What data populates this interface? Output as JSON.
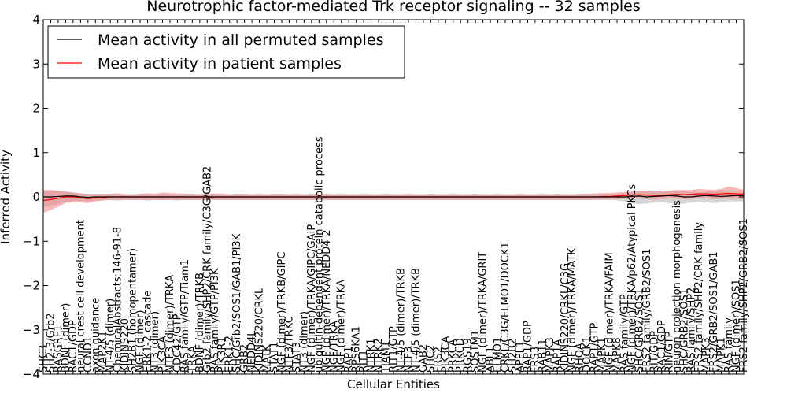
{
  "chart_data": {
    "type": "line",
    "title": "Neurotrophic factor-mediated Trk receptor signaling -- 32 samples",
    "xlabel": "Cellular Entities",
    "ylabel": "Inferred Activity",
    "ylim": [
      -4,
      4
    ],
    "yticks": [
      -4,
      -3,
      -2,
      -1,
      0,
      1,
      2,
      3,
      4
    ],
    "ytick_labels": [
      "−4",
      "−3",
      "−2",
      "−1",
      "0",
      "1",
      "2",
      "3",
      "4"
    ],
    "grid": false,
    "legend_position": "top-left",
    "categories": [
      "SHC3",
      "SH2-3/Grb2",
      "RASGRF1",
      "BDNF (dimer)",
      "RAC1/GDP",
      "neural crest cell development",
      "CCND1",
      "axon guidance",
      "MAP2K1",
      "NT-4/5 (dimer)",
      "ChemicalAbstracts:146-91-8",
      "KIDINS220",
      "SH2B1 (homopentamer)",
      "NGF (dimer)",
      "ERK1-2 cascade",
      "NT3 (dimer)",
      "PIK3CA",
      "NTF3 (dimer)/TRKA",
      "CDC42/GTP",
      "RAS family/GTP/Tiam1",
      "TRKA",
      "BDNF (dimer)/TRKB",
      "Grb2 family/SHP2/CRK family/C3G/GAB2",
      "RAS family/GTP/PI3K",
      "PIK3R1",
      "ERK1-2",
      "SHC/Grb2/SOS1/GAB1/PI3K",
      "GRB2",
      "NEDD4L",
      "KIDINS220/CRKL",
      "MATK",
      "STAT1",
      "NGF (dimer)/TRKB/GIPC",
      "NTF3/TRKC",
      "STAT3",
      "NT3 (dimer)",
      "NGF (dimer)/TRKA/GIPC/GAIP",
      "ubiquitin-dependent protein catabolic process",
      "NGF (dimer)/TRKA/NEDD4-2",
      "NGF/TRKA",
      "NGF (dimer)/TRKA",
      "RAP1",
      "RPS6KA1",
      "RIT1",
      "NTRK1",
      "NTRK2",
      "TIAM1",
      "RIT1/GTP",
      "NT-4/5 (dimer)/TRKB",
      "NTF3",
      "NT-4/5 (dimer)/TRKB",
      "GAB2",
      "SHC2",
      "FRS2",
      "PIK3CA",
      "PRKCA",
      "PRKCD",
      "RGS19",
      "SQSTM1",
      "NGF (dimer)/TRKA/GRIT",
      "ABL1",
      "ELMO1",
      "CRKL/C3G/ELMO1/DOCK1",
      "SH2B2",
      "APPL1",
      "RAP1/GDP",
      "FRS3",
      "RAB11",
      "MAPK3",
      "RAP1A",
      "KIDINS220/CRKL/C3G",
      "NGF (dimer)/TRKA/MATK",
      "RHOA",
      "DOCK1",
      "RAP1/GTP",
      "MAPK1",
      "NGF (dimer)/TRKA/FAIM",
      "MAPK8",
      "RAS family/GTP",
      "NGF (dimer)/TRKA/p62/Atypical PKCs",
      "SHC/GRB2/SOS1",
      "FRS2 family/GRB2/SOS1",
      "RIT/GDP",
      "RAC1/GDP",
      "RIN/GTP",
      "neuron projection morphogenesis",
      "SHC/GRB2/SOS1",
      "RAS family/SHP2",
      "FRS2 family/SHP2/CRK family",
      "MAPK3",
      "FRS2/GRB2/SOS1/GAB1",
      "MAPK1",
      "RAS family",
      "NGF (dimer)/SOS1",
      "FRS2 family/SHP2/GRB2/SOS1"
    ],
    "series": [
      {
        "name": "Mean activity in all permuted samples",
        "color": "#000000",
        "band_color": "#c8c8c8",
        "values": [
          0.0,
          0.0,
          0.01,
          0.02,
          0.02,
          0.0,
          -0.01,
          0.0,
          0.0,
          0.0,
          0.0,
          0.0,
          0.0,
          0.0,
          0.0,
          0.0,
          0.0,
          0.0,
          0.0,
          0.0,
          0.0,
          0.0,
          0.0,
          0.0,
          0.0,
          0.0,
          0.0,
          0.0,
          0.0,
          0.0,
          0.0,
          0.0,
          0.0,
          0.0,
          0.0,
          0.0,
          0.0,
          0.0,
          0.0,
          0.0,
          0.0,
          0.0,
          0.0,
          0.0,
          0.0,
          0.0,
          0.0,
          0.0,
          0.0,
          0.0,
          0.0,
          0.0,
          0.0,
          0.0,
          0.0,
          0.0,
          0.0,
          0.0,
          0.0,
          0.0,
          0.0,
          0.0,
          0.0,
          0.0,
          0.0,
          0.0,
          0.0,
          0.0,
          0.0,
          0.0,
          0.0,
          0.0,
          0.0,
          0.0,
          0.0,
          0.0,
          0.0,
          0.0,
          0.0,
          0.01,
          0.02,
          0.0,
          0.01,
          0.02,
          0.03,
          0.02,
          0.0,
          0.0,
          0.02,
          0.03,
          0.02,
          0.01,
          0.02,
          0.03,
          0.03
        ],
        "lower": [
          -0.22,
          -0.2,
          -0.16,
          -0.12,
          -0.1,
          -0.09,
          -0.1,
          -0.08,
          -0.08,
          -0.07,
          -0.08,
          -0.07,
          -0.07,
          -0.07,
          -0.08,
          -0.07,
          -0.07,
          -0.07,
          -0.08,
          -0.07,
          -0.07,
          -0.07,
          -0.07,
          -0.07,
          -0.07,
          -0.07,
          -0.07,
          -0.07,
          -0.07,
          -0.07,
          -0.07,
          -0.07,
          -0.07,
          -0.07,
          -0.07,
          -0.07,
          -0.07,
          -0.07,
          -0.07,
          -0.07,
          -0.07,
          -0.07,
          -0.07,
          -0.07,
          -0.07,
          -0.07,
          -0.07,
          -0.07,
          -0.07,
          -0.07,
          -0.07,
          -0.07,
          -0.07,
          -0.07,
          -0.07,
          -0.07,
          -0.07,
          -0.07,
          -0.07,
          -0.07,
          -0.07,
          -0.07,
          -0.07,
          -0.07,
          -0.07,
          -0.07,
          -0.07,
          -0.07,
          -0.07,
          -0.07,
          -0.07,
          -0.07,
          -0.07,
          -0.07,
          -0.07,
          -0.07,
          -0.07,
          -0.08,
          -0.1,
          -0.14,
          -0.16,
          -0.15,
          -0.13,
          -0.12,
          -0.14,
          -0.16,
          -0.15,
          -0.12,
          -0.1,
          -0.12,
          -0.14,
          -0.12,
          -0.1,
          -0.1,
          -0.1
        ],
        "upper": [
          0.12,
          0.14,
          0.14,
          0.12,
          0.1,
          0.08,
          0.07,
          0.07,
          0.07,
          0.07,
          0.07,
          0.06,
          0.06,
          0.06,
          0.07,
          0.06,
          0.06,
          0.06,
          0.06,
          0.06,
          0.06,
          0.06,
          0.06,
          0.06,
          0.06,
          0.06,
          0.06,
          0.06,
          0.06,
          0.06,
          0.06,
          0.06,
          0.06,
          0.06,
          0.06,
          0.06,
          0.06,
          0.06,
          0.06,
          0.06,
          0.06,
          0.06,
          0.06,
          0.06,
          0.06,
          0.06,
          0.06,
          0.06,
          0.06,
          0.06,
          0.06,
          0.06,
          0.06,
          0.06,
          0.06,
          0.06,
          0.06,
          0.06,
          0.06,
          0.06,
          0.06,
          0.06,
          0.06,
          0.06,
          0.06,
          0.06,
          0.06,
          0.06,
          0.06,
          0.06,
          0.06,
          0.06,
          0.06,
          0.06,
          0.06,
          0.06,
          0.06,
          0.07,
          0.09,
          0.12,
          0.14,
          0.14,
          0.12,
          0.12,
          0.13,
          0.14,
          0.13,
          0.11,
          0.1,
          0.12,
          0.14,
          0.13,
          0.11,
          0.11,
          0.11
        ]
      },
      {
        "name": "Mean activity in patient samples",
        "color": "#ff0000",
        "band_color": "#f08080",
        "values": [
          -0.08,
          -0.06,
          -0.03,
          0.0,
          0.0,
          -0.02,
          -0.04,
          -0.02,
          -0.01,
          0.0,
          0.0,
          0.0,
          0.0,
          0.0,
          0.0,
          0.0,
          0.0,
          0.0,
          0.0,
          0.0,
          0.0,
          0.0,
          0.0,
          0.0,
          0.0,
          0.0,
          0.0,
          0.0,
          0.0,
          0.0,
          0.0,
          0.0,
          0.0,
          0.0,
          0.0,
          0.0,
          0.0,
          0.0,
          0.0,
          0.0,
          0.0,
          0.0,
          0.0,
          0.0,
          0.0,
          0.0,
          0.0,
          0.0,
          0.0,
          0.0,
          0.0,
          0.0,
          0.0,
          0.0,
          0.0,
          0.0,
          0.0,
          0.0,
          0.0,
          0.0,
          0.0,
          0.0,
          0.0,
          0.0,
          0.0,
          0.0,
          0.0,
          0.0,
          0.0,
          0.0,
          0.0,
          0.0,
          0.0,
          0.0,
          0.0,
          0.01,
          0.01,
          0.02,
          0.03,
          0.04,
          0.05,
          0.04,
          0.03,
          0.04,
          0.05,
          0.06,
          0.05,
          0.06,
          0.07,
          0.07,
          0.06,
          0.07,
          0.08,
          0.07,
          0.06
        ],
        "lower": [
          -0.36,
          -0.3,
          -0.22,
          -0.14,
          -0.1,
          -0.12,
          -0.14,
          -0.1,
          -0.08,
          -0.06,
          -0.07,
          -0.06,
          -0.06,
          -0.06,
          -0.07,
          -0.06,
          -0.07,
          -0.06,
          -0.07,
          -0.06,
          -0.06,
          -0.06,
          -0.06,
          -0.06,
          -0.06,
          -0.06,
          -0.06,
          -0.06,
          -0.06,
          -0.06,
          -0.06,
          -0.06,
          -0.06,
          -0.06,
          -0.06,
          -0.06,
          -0.06,
          -0.06,
          -0.06,
          -0.06,
          -0.06,
          -0.06,
          -0.06,
          -0.06,
          -0.06,
          -0.06,
          -0.06,
          -0.06,
          -0.06,
          -0.06,
          -0.06,
          -0.06,
          -0.06,
          -0.06,
          -0.06,
          -0.06,
          -0.06,
          -0.06,
          -0.06,
          -0.06,
          -0.06,
          -0.06,
          -0.06,
          -0.06,
          -0.06,
          -0.06,
          -0.06,
          -0.06,
          -0.06,
          -0.06,
          -0.06,
          -0.06,
          -0.06,
          -0.06,
          -0.06,
          -0.05,
          -0.05,
          -0.05,
          -0.04,
          -0.04,
          -0.04,
          -0.05,
          -0.06,
          -0.05,
          -0.04,
          -0.04,
          -0.05,
          -0.04,
          -0.03,
          -0.04,
          -0.05,
          -0.04,
          -0.04,
          -0.05,
          -0.05
        ],
        "upper": [
          0.16,
          0.16,
          0.14,
          0.12,
          0.1,
          0.08,
          0.06,
          0.06,
          0.06,
          0.07,
          0.08,
          0.06,
          0.06,
          0.07,
          0.08,
          0.07,
          0.1,
          0.09,
          0.08,
          0.07,
          0.07,
          0.06,
          0.07,
          0.08,
          0.07,
          0.06,
          0.07,
          0.07,
          0.06,
          0.07,
          0.06,
          0.07,
          0.07,
          0.06,
          0.07,
          0.06,
          0.07,
          0.06,
          0.07,
          0.06,
          0.07,
          0.06,
          0.06,
          0.07,
          0.06,
          0.06,
          0.07,
          0.06,
          0.06,
          0.07,
          0.06,
          0.06,
          0.07,
          0.06,
          0.06,
          0.07,
          0.06,
          0.06,
          0.07,
          0.06,
          0.06,
          0.07,
          0.06,
          0.06,
          0.07,
          0.06,
          0.06,
          0.07,
          0.06,
          0.07,
          0.06,
          0.06,
          0.07,
          0.07,
          0.08,
          0.09,
          0.09,
          0.1,
          0.11,
          0.12,
          0.14,
          0.13,
          0.12,
          0.13,
          0.14,
          0.16,
          0.15,
          0.16,
          0.18,
          0.17,
          0.16,
          0.18,
          0.24,
          0.2,
          0.16
        ]
      }
    ]
  }
}
